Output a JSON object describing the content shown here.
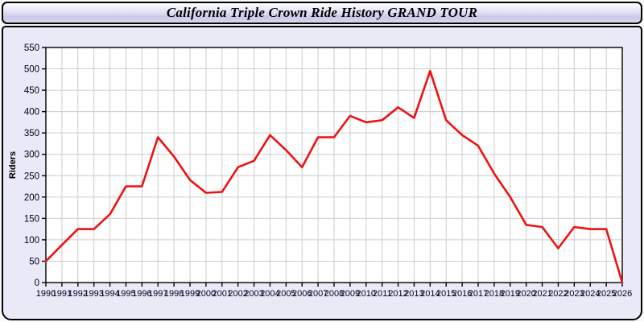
{
  "header": {
    "title": "California Triple Crown Ride History GRAND TOUR"
  },
  "chart_data": {
    "type": "line",
    "title": "California Triple Crown Ride History GRAND TOUR",
    "xlabel": "",
    "ylabel": "Riders",
    "x": [
      1990,
      1991,
      1992,
      1993,
      1994,
      1995,
      1996,
      1997,
      1998,
      1999,
      2000,
      2001,
      2002,
      2003,
      2004,
      2005,
      2006,
      2007,
      2008,
      2009,
      2010,
      2011,
      2012,
      2013,
      2014,
      2015,
      2016,
      2017,
      2018,
      2019,
      2020,
      2021,
      2022,
      2023,
      2024,
      2025,
      2026
    ],
    "series": [
      {
        "name": "Riders",
        "values": [
          50,
          88,
          125,
          125,
          160,
          225,
          225,
          340,
          295,
          240,
          210,
          212,
          270,
          285,
          345,
          310,
          270,
          340,
          340,
          390,
          375,
          380,
          410,
          385,
          495,
          380,
          345,
          320,
          255,
          200,
          135,
          130,
          80,
          130,
          125,
          125,
          0
        ]
      }
    ],
    "ylim": [
      0,
      550
    ],
    "ytick_step": 50,
    "grid": true,
    "legend_position": "none",
    "colors": {
      "line": "#ee1111",
      "plot_background": "#ffffff",
      "grid": "#cccccc",
      "axis": "#000000",
      "tick_label": "#000022",
      "panel_background": "#e9e9f7"
    }
  }
}
